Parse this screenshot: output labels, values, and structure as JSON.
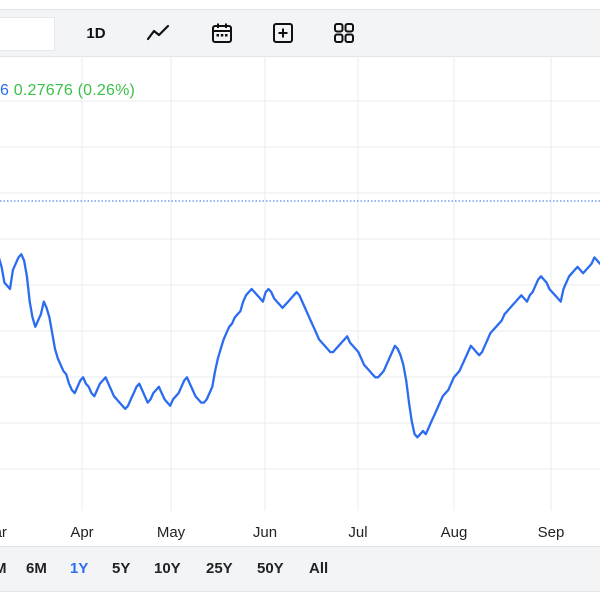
{
  "toolbar": {
    "interval_label": "1D",
    "icons": [
      "line-chart-icon",
      "calendar-icon",
      "add-plus-icon",
      "grid-layout-icon"
    ]
  },
  "quote": {
    "change_prefix": "6",
    "change": "0.27676 (0.26%)"
  },
  "range_buttons": [
    {
      "label": "M",
      "active": false
    },
    {
      "label": "6M",
      "active": false
    },
    {
      "label": "1Y",
      "active": true
    },
    {
      "label": "5Y",
      "active": false
    },
    {
      "label": "10Y",
      "active": false
    },
    {
      "label": "25Y",
      "active": false
    },
    {
      "label": "50Y",
      "active": false
    },
    {
      "label": "All",
      "active": false
    }
  ],
  "colors": {
    "line": "#2b6cf0",
    "positive": "#3bbf48",
    "grid": "#e9ebef",
    "reference_line": "#2b6cf0"
  },
  "chart_data": {
    "type": "line",
    "title": "",
    "xlabel": "",
    "ylabel": "",
    "x_tick_labels": [
      "Mar",
      "Apr",
      "May",
      "Jun",
      "Jul",
      "Aug",
      "Sep"
    ],
    "grid": true,
    "reference_line": "dotted horizontal previous-close line",
    "ylim": [
      0,
      100
    ],
    "series": [
      {
        "values": [
          72,
          74,
          71,
          66,
          65,
          64,
          70,
          72,
          74,
          75,
          73,
          68,
          60,
          55,
          52,
          54,
          56,
          60,
          58,
          55,
          50,
          45,
          42,
          40,
          38,
          37,
          34,
          32,
          31,
          33,
          35,
          36,
          34,
          33,
          31,
          30,
          32,
          34,
          35,
          36,
          34,
          32,
          30,
          29,
          28,
          27,
          26,
          27,
          29,
          31,
          33,
          34,
          32,
          30,
          28,
          29,
          31,
          32,
          33,
          31,
          29,
          28,
          27,
          29,
          30,
          31,
          33,
          35,
          36,
          34,
          32,
          30,
          29,
          28,
          28,
          29,
          31,
          33,
          38,
          42,
          45,
          48,
          50,
          52,
          53,
          55,
          56,
          57,
          60,
          62,
          63,
          64,
          63,
          62,
          61,
          60,
          63,
          64,
          63,
          61,
          60,
          59,
          58,
          59,
          60,
          61,
          62,
          63,
          62,
          60,
          58,
          56,
          54,
          52,
          50,
          48,
          47,
          46,
          45,
          44,
          44,
          45,
          46,
          47,
          48,
          49,
          47,
          46,
          45,
          44,
          42,
          40,
          39,
          38,
          37,
          36,
          36,
          37,
          38,
          40,
          42,
          44,
          46,
          45,
          43,
          40,
          35,
          28,
          22,
          18,
          17,
          18,
          19,
          18,
          20,
          22,
          24,
          26,
          28,
          30,
          31,
          32,
          34,
          36,
          37,
          38,
          40,
          42,
          44,
          46,
          45,
          44,
          43,
          44,
          46,
          48,
          50,
          51,
          52,
          53,
          54,
          56,
          57,
          58,
          59,
          60,
          61,
          62,
          61,
          60,
          62,
          63,
          65,
          67,
          68,
          67,
          66,
          64,
          63,
          62,
          61,
          60,
          64,
          66,
          68,
          69,
          70,
          71,
          70,
          69,
          70,
          71,
          72,
          74,
          73,
          72
        ]
      }
    ]
  }
}
